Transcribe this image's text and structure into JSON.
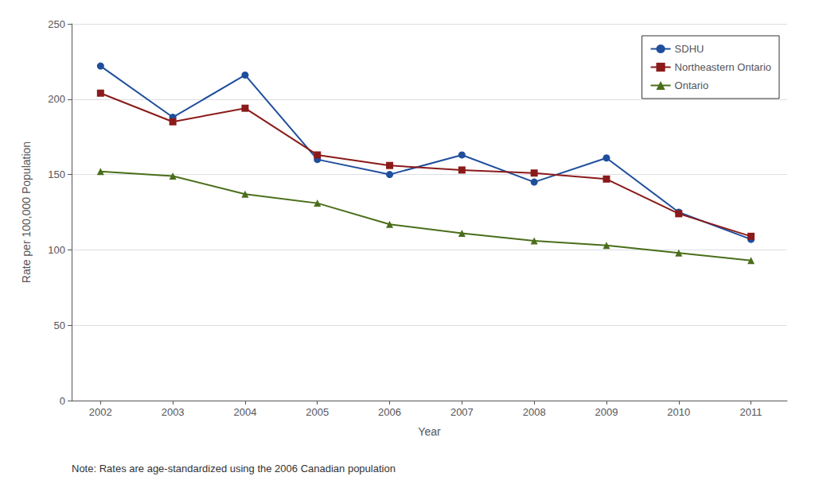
{
  "chart_data": {
    "type": "line",
    "x_label": "Year",
    "y_label": "Rate per 100,000 Population",
    "annotations": [
      "Note: Rates are age-standardized using the 2006 Canadian population"
    ],
    "x": [
      2002,
      2003,
      2004,
      2005,
      2006,
      2007,
      2008,
      2009,
      2010,
      2011
    ],
    "series": [
      {
        "name": "SDHU",
        "color": "#1f4e9c",
        "marker": "circle",
        "values": [
          222,
          188,
          216,
          160,
          150,
          163,
          145,
          161,
          125,
          107
        ]
      },
      {
        "name": "Northeastern Ontario",
        "color": "#8b1a1a",
        "marker": "square",
        "values": [
          204,
          185,
          194,
          163,
          156,
          153,
          151,
          147,
          124,
          109
        ]
      },
      {
        "name": "Ontario",
        "color": "#4a6e1a",
        "marker": "triangle",
        "values": [
          152,
          149,
          137,
          131,
          117,
          111,
          106,
          103,
          98,
          93
        ]
      }
    ],
    "xlim": [
      2001.6,
      2011.5
    ],
    "xticks": [
      2002,
      2003,
      2004,
      2005,
      2006,
      2007,
      2008,
      2009,
      2010,
      2011
    ],
    "ylim": [
      0,
      250
    ],
    "yticks": [
      0,
      50,
      100,
      150,
      200,
      250
    ],
    "grid": true,
    "legend": "upper right"
  }
}
